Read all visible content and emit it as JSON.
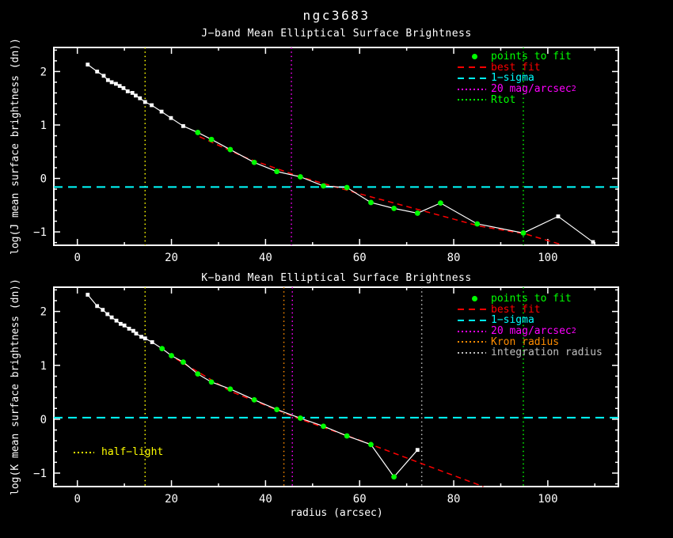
{
  "figure": {
    "title": "ngc3683"
  },
  "colors": {
    "background": "#000000",
    "white": "#ffffff",
    "green": "#00ff00",
    "red": "#ff0000",
    "cyan": "#00ffff",
    "magenta": "#ff00ff",
    "yellow": "#ffff00",
    "orange": "#ff8c00",
    "gray": "#c0c0c0"
  },
  "chart_data": [
    {
      "type": "line",
      "band": "J",
      "title": "J−band Mean Elliptical Surface Brightness",
      "xlabel": "",
      "ylabel": "log(J mean surface brightness (dn))",
      "xlim": [
        -5,
        115
      ],
      "ylim": [
        -1.25,
        2.45
      ],
      "xticks": [
        0,
        20,
        40,
        60,
        80,
        100
      ],
      "yticks": [
        -1,
        0,
        1,
        2
      ],
      "x_minor_step": 10,
      "y_minor_step": 0.2,
      "grid": false,
      "legend_position": "upper right",
      "points": [
        {
          "x": 2.2,
          "y": 2.13,
          "fit": false
        },
        {
          "x": 4.2,
          "y": 2.0,
          "fit": false
        },
        {
          "x": 5.6,
          "y": 1.92,
          "fit": false
        },
        {
          "x": 6.5,
          "y": 1.84,
          "fit": false
        },
        {
          "x": 7.3,
          "y": 1.8,
          "fit": false
        },
        {
          "x": 8.2,
          "y": 1.77,
          "fit": false
        },
        {
          "x": 9.0,
          "y": 1.73,
          "fit": false
        },
        {
          "x": 9.8,
          "y": 1.69,
          "fit": false
        },
        {
          "x": 10.7,
          "y": 1.63,
          "fit": false
        },
        {
          "x": 11.7,
          "y": 1.6,
          "fit": false
        },
        {
          "x": 12.4,
          "y": 1.55,
          "fit": false
        },
        {
          "x": 13.3,
          "y": 1.5,
          "fit": false
        },
        {
          "x": 14.4,
          "y": 1.43,
          "fit": false
        },
        {
          "x": 15.8,
          "y": 1.37,
          "fit": false
        },
        {
          "x": 17.9,
          "y": 1.25,
          "fit": false
        },
        {
          "x": 19.9,
          "y": 1.13,
          "fit": false
        },
        {
          "x": 22.5,
          "y": 0.98,
          "fit": false
        },
        {
          "x": 25.6,
          "y": 0.86,
          "fit": true
        },
        {
          "x": 28.5,
          "y": 0.73,
          "fit": true
        },
        {
          "x": 32.5,
          "y": 0.54,
          "fit": true
        },
        {
          "x": 37.6,
          "y": 0.3,
          "fit": true
        },
        {
          "x": 42.4,
          "y": 0.13,
          "fit": true
        },
        {
          "x": 47.4,
          "y": 0.03,
          "fit": true
        },
        {
          "x": 52.3,
          "y": -0.14,
          "fit": true
        },
        {
          "x": 57.3,
          "y": -0.17,
          "fit": true
        },
        {
          "x": 62.4,
          "y": -0.45,
          "fit": true
        },
        {
          "x": 67.3,
          "y": -0.56,
          "fit": true
        },
        {
          "x": 72.3,
          "y": -0.65,
          "fit": true
        },
        {
          "x": 77.2,
          "y": -0.46,
          "fit": true
        },
        {
          "x": 85.0,
          "y": -0.85,
          "fit": true
        },
        {
          "x": 94.8,
          "y": -1.02,
          "fit": true
        },
        {
          "x": 102.2,
          "y": -0.71,
          "fit": false
        },
        {
          "x": 109.6,
          "y": -1.19,
          "fit": false
        }
      ],
      "best_fit": [
        [
          26,
          0.78
        ],
        [
          36,
          0.38
        ],
        [
          47.4,
          0.03
        ],
        [
          59.7,
          -0.28
        ],
        [
          76.6,
          -0.68
        ],
        [
          85.4,
          -0.89
        ],
        [
          95.3,
          -1.04
        ],
        [
          103,
          -1.24
        ]
      ],
      "one_sigma_y": -0.16,
      "vlines": [
        {
          "name": "half-light",
          "x": 14.4,
          "color": "yellow"
        },
        {
          "name": "20 mag/arcsec2",
          "x": 45.5,
          "color": "magenta"
        },
        {
          "name": "Rtot",
          "x": 94.8,
          "color": "green"
        }
      ],
      "legend": [
        {
          "label": "points to fit",
          "color": "green",
          "sample": "dot"
        },
        {
          "label": "best fit",
          "color": "red",
          "sample": "dashed"
        },
        {
          "label": "1−sigma",
          "color": "cyan",
          "sample": "dashed"
        },
        {
          "label": "20 mag/arcsec",
          "sup": "2",
          "color": "magenta",
          "sample": "dotted"
        },
        {
          "label": "Rtot",
          "color": "green",
          "sample": "dotted"
        }
      ]
    },
    {
      "type": "line",
      "band": "K",
      "title": "K−band Mean Elliptical Surface Brightness",
      "xlabel": "radius (arcsec)",
      "ylabel": "log(K mean surface brightness (dn))",
      "xlim": [
        -5,
        115
      ],
      "ylim": [
        -1.25,
        2.45
      ],
      "xticks": [
        0,
        20,
        40,
        60,
        80,
        100
      ],
      "yticks": [
        -1,
        0,
        1,
        2
      ],
      "x_minor_step": 10,
      "y_minor_step": 0.2,
      "grid": false,
      "legend_position": "upper right",
      "points": [
        {
          "x": 2.2,
          "y": 2.31,
          "fit": false
        },
        {
          "x": 4.2,
          "y": 2.1,
          "fit": false
        },
        {
          "x": 5.4,
          "y": 2.03,
          "fit": false
        },
        {
          "x": 6.4,
          "y": 1.95,
          "fit": false
        },
        {
          "x": 7.3,
          "y": 1.89,
          "fit": false
        },
        {
          "x": 8.3,
          "y": 1.83,
          "fit": false
        },
        {
          "x": 9.2,
          "y": 1.77,
          "fit": false
        },
        {
          "x": 10.0,
          "y": 1.74,
          "fit": false
        },
        {
          "x": 11.0,
          "y": 1.68,
          "fit": false
        },
        {
          "x": 11.9,
          "y": 1.64,
          "fit": false
        },
        {
          "x": 12.5,
          "y": 1.59,
          "fit": false
        },
        {
          "x": 13.6,
          "y": 1.53,
          "fit": false
        },
        {
          "x": 14.4,
          "y": 1.5,
          "fit": false
        },
        {
          "x": 15.9,
          "y": 1.43,
          "fit": false
        },
        {
          "x": 18.0,
          "y": 1.31,
          "fit": true
        },
        {
          "x": 20.0,
          "y": 1.18,
          "fit": true
        },
        {
          "x": 22.5,
          "y": 1.06,
          "fit": true
        },
        {
          "x": 25.6,
          "y": 0.84,
          "fit": true
        },
        {
          "x": 28.5,
          "y": 0.69,
          "fit": true
        },
        {
          "x": 32.5,
          "y": 0.56,
          "fit": true
        },
        {
          "x": 37.6,
          "y": 0.36,
          "fit": true
        },
        {
          "x": 42.4,
          "y": 0.18,
          "fit": true
        },
        {
          "x": 47.4,
          "y": 0.02,
          "fit": true
        },
        {
          "x": 52.3,
          "y": -0.13,
          "fit": true
        },
        {
          "x": 57.3,
          "y": -0.31,
          "fit": true
        },
        {
          "x": 62.4,
          "y": -0.47,
          "fit": true
        },
        {
          "x": 67.3,
          "y": -1.07,
          "fit": true
        },
        {
          "x": 72.3,
          "y": -0.57,
          "fit": false
        }
      ],
      "best_fit": [
        [
          21,
          1.12
        ],
        [
          32.5,
          0.52
        ],
        [
          47.4,
          0.0
        ],
        [
          59.7,
          -0.38
        ],
        [
          74,
          -0.85
        ],
        [
          86.3,
          -1.25
        ]
      ],
      "one_sigma_y": 0.03,
      "vlines": [
        {
          "name": "half-light",
          "x": 14.4,
          "color": "yellow"
        },
        {
          "name": "Kron radius",
          "x": 43.9,
          "color": "orange"
        },
        {
          "name": "20 mag/arcsec2",
          "x": 45.7,
          "color": "magenta"
        },
        {
          "name": "integration radius",
          "x": 73.2,
          "color": "gray"
        },
        {
          "name": "Rtot",
          "x": 94.8,
          "color": "green"
        }
      ],
      "legend": [
        {
          "label": "points to fit",
          "color": "green",
          "sample": "dot"
        },
        {
          "label": "best fit",
          "color": "red",
          "sample": "dashed"
        },
        {
          "label": "1−sigma",
          "color": "cyan",
          "sample": "dashed"
        },
        {
          "label": "20 mag/arcsec",
          "sup": "2",
          "color": "magenta",
          "sample": "dotted"
        },
        {
          "label": "Kron radius",
          "color": "orange",
          "sample": "dotted"
        },
        {
          "label": "integration radius",
          "color": "gray",
          "sample": "dotted"
        }
      ],
      "annotations": [
        {
          "label": "half−light",
          "color": "yellow",
          "sample": "dotted"
        }
      ]
    }
  ]
}
